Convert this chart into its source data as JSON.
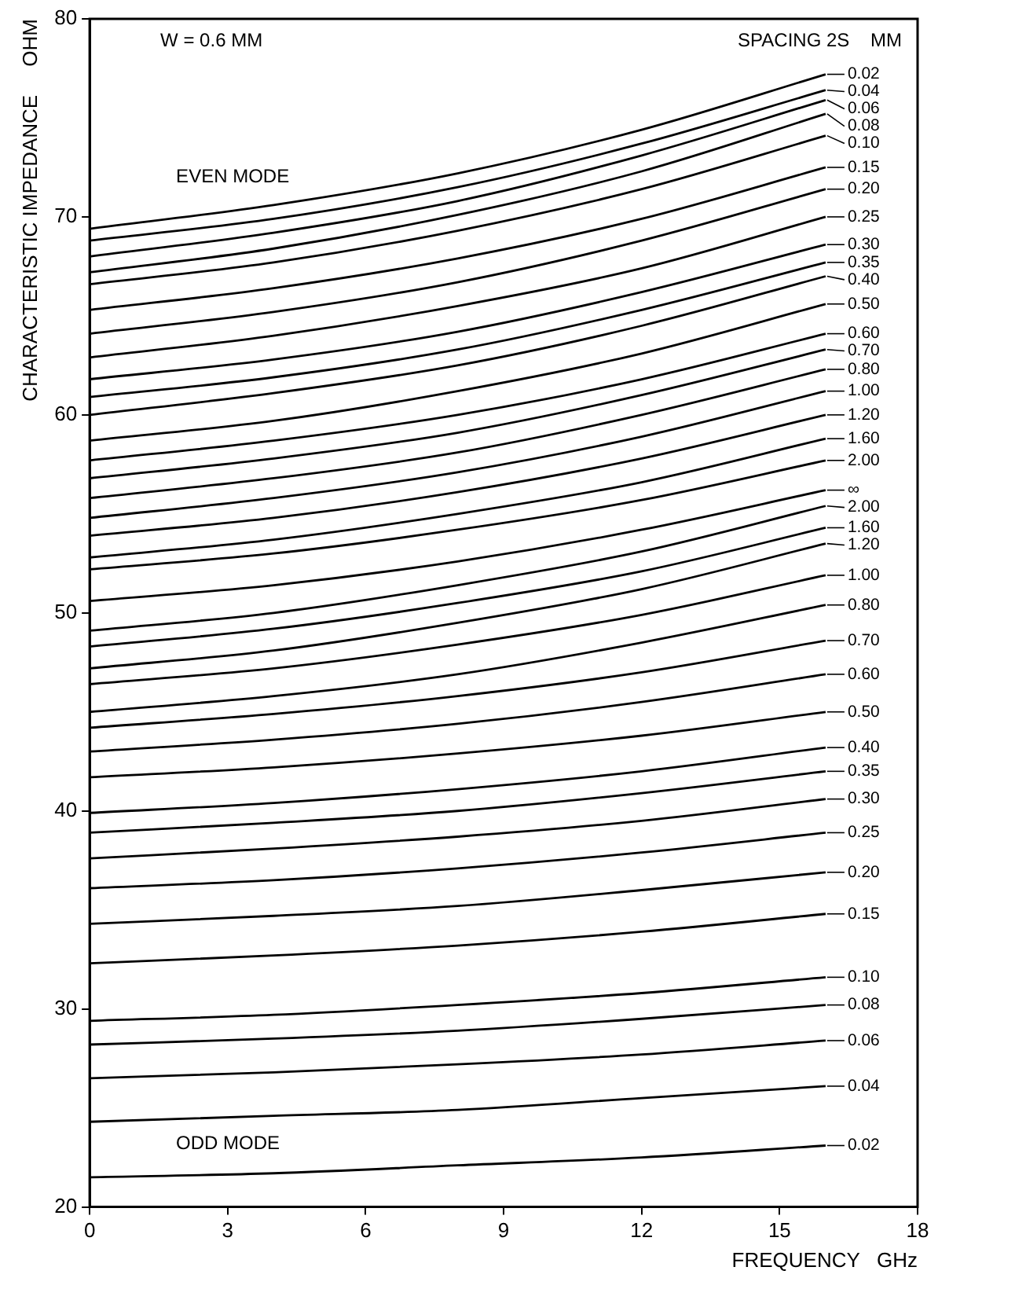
{
  "chart_data": {
    "type": "line",
    "xlabel": "FREQUENCY   GHz",
    "ylabel": "CHARACTERISTIC IMPEDANCE     OHM",
    "annotations": [
      "W = 0.6 MM",
      "SPACING 2S    MM",
      "EVEN MODE",
      "ODD MODE"
    ],
    "legend": "right",
    "x": [
      0,
      4,
      8,
      12,
      16
    ],
    "xlim": [
      0,
      18
    ],
    "xticks": [
      0,
      3,
      6,
      9,
      12,
      15,
      18
    ],
    "ylim": [
      20,
      80
    ],
    "yticks": [
      20,
      30,
      40,
      50,
      60,
      70,
      80
    ],
    "series": [
      {
        "name": "0.02",
        "color": "#000000",
        "values": [
          69.4,
          70.6,
          72.2,
          74.4,
          77.2
        ]
      },
      {
        "name": "0.04",
        "color": "#000000",
        "values": [
          68.8,
          69.9,
          71.5,
          73.7,
          76.4
        ]
      },
      {
        "name": "0.06",
        "color": "#000000",
        "values": [
          68.0,
          69.2,
          70.8,
          73.1,
          75.9
        ]
      },
      {
        "name": "0.08",
        "color": "#000000",
        "values": [
          67.2,
          68.4,
          70.1,
          72.3,
          75.2
        ]
      },
      {
        "name": "0.10",
        "color": "#000000",
        "values": [
          66.6,
          67.7,
          69.3,
          71.4,
          74.1
        ]
      },
      {
        "name": "0.15",
        "color": "#000000",
        "values": [
          65.3,
          66.4,
          67.9,
          69.9,
          72.5
        ]
      },
      {
        "name": "0.20",
        "color": "#000000",
        "values": [
          64.1,
          65.2,
          66.7,
          68.8,
          71.4
        ]
      },
      {
        "name": "0.25",
        "color": "#000000",
        "values": [
          62.9,
          64.0,
          65.5,
          67.4,
          70.0
        ]
      },
      {
        "name": "0.30",
        "color": "#000000",
        "values": [
          61.8,
          62.8,
          64.2,
          66.2,
          68.6
        ]
      },
      {
        "name": "0.35",
        "color": "#000000",
        "values": [
          60.9,
          61.9,
          63.3,
          65.3,
          67.7
        ]
      },
      {
        "name": "0.40",
        "color": "#000000",
        "values": [
          60.0,
          61.1,
          62.5,
          64.5,
          67.0
        ]
      },
      {
        "name": "0.50",
        "color": "#000000",
        "values": [
          58.7,
          59.7,
          61.2,
          63.1,
          65.6
        ]
      },
      {
        "name": "0.60",
        "color": "#000000",
        "values": [
          57.7,
          58.7,
          60.0,
          61.8,
          64.1
        ]
      },
      {
        "name": "0.70",
        "color": "#000000",
        "values": [
          56.8,
          57.8,
          59.1,
          61.0,
          63.3
        ]
      },
      {
        "name": "0.80",
        "color": "#000000",
        "values": [
          55.8,
          56.8,
          58.1,
          60.0,
          62.3
        ]
      },
      {
        "name": "1.00",
        "color": "#000000",
        "values": [
          54.8,
          55.8,
          57.1,
          58.9,
          61.2
        ]
      },
      {
        "name": "1.20",
        "color": "#000000",
        "values": [
          53.9,
          54.8,
          56.1,
          57.8,
          60.0
        ]
      },
      {
        "name": "1.60",
        "color": "#000000",
        "values": [
          52.8,
          53.7,
          55.0,
          56.6,
          58.8
        ]
      },
      {
        "name": "2.00",
        "color": "#000000",
        "values": [
          52.2,
          53.0,
          54.2,
          55.7,
          57.7
        ]
      },
      {
        "name": "∞",
        "color": "#000000",
        "values": [
          50.6,
          51.4,
          52.6,
          54.2,
          56.2
        ]
      },
      {
        "name": "2.00",
        "color": "#000000",
        "values": [
          49.1,
          50.0,
          51.4,
          53.1,
          55.4
        ]
      },
      {
        "name": "1.60",
        "color": "#000000",
        "values": [
          48.3,
          49.2,
          50.5,
          52.1,
          54.3
        ]
      },
      {
        "name": "1.20",
        "color": "#000000",
        "values": [
          47.2,
          48.1,
          49.5,
          51.2,
          53.5
        ]
      },
      {
        "name": "1.00",
        "color": "#000000",
        "values": [
          46.4,
          47.2,
          48.4,
          49.9,
          51.9
        ]
      },
      {
        "name": "0.80",
        "color": "#000000",
        "values": [
          45.0,
          45.8,
          46.9,
          48.5,
          50.4
        ]
      },
      {
        "name": "0.70",
        "color": "#000000",
        "values": [
          44.2,
          44.9,
          45.8,
          47.0,
          48.6
        ]
      },
      {
        "name": "0.60",
        "color": "#000000",
        "values": [
          43.0,
          43.6,
          44.4,
          45.5,
          46.9
        ]
      },
      {
        "name": "0.50",
        "color": "#000000",
        "values": [
          41.7,
          42.2,
          42.9,
          43.8,
          45.0
        ]
      },
      {
        "name": "0.40",
        "color": "#000000",
        "values": [
          39.9,
          40.4,
          41.1,
          42.0,
          43.2
        ]
      },
      {
        "name": "0.35",
        "color": "#000000",
        "values": [
          38.9,
          39.4,
          40.0,
          40.9,
          42.0
        ]
      },
      {
        "name": "0.30",
        "color": "#000000",
        "values": [
          37.6,
          38.1,
          38.7,
          39.5,
          40.6
        ]
      },
      {
        "name": "0.25",
        "color": "#000000",
        "values": [
          36.1,
          36.5,
          37.1,
          37.9,
          38.9
        ]
      },
      {
        "name": "0.20",
        "color": "#000000",
        "values": [
          34.3,
          34.7,
          35.2,
          36.0,
          36.9
        ]
      },
      {
        "name": "0.15",
        "color": "#000000",
        "values": [
          32.3,
          32.7,
          33.2,
          33.9,
          34.8
        ]
      },
      {
        "name": "0.10",
        "color": "#000000",
        "values": [
          29.4,
          29.7,
          30.2,
          30.8,
          31.6
        ]
      },
      {
        "name": "0.08",
        "color": "#000000",
        "values": [
          28.2,
          28.5,
          28.9,
          29.5,
          30.2
        ]
      },
      {
        "name": "0.06",
        "color": "#000000",
        "values": [
          26.5,
          26.8,
          27.2,
          27.7,
          28.4
        ]
      },
      {
        "name": "0.04",
        "color": "#000000",
        "values": [
          24.3,
          24.6,
          24.9,
          25.5,
          26.1
        ]
      },
      {
        "name": "0.02",
        "color": "#000000",
        "values": [
          21.5,
          21.7,
          22.1,
          22.5,
          23.1
        ]
      }
    ]
  }
}
